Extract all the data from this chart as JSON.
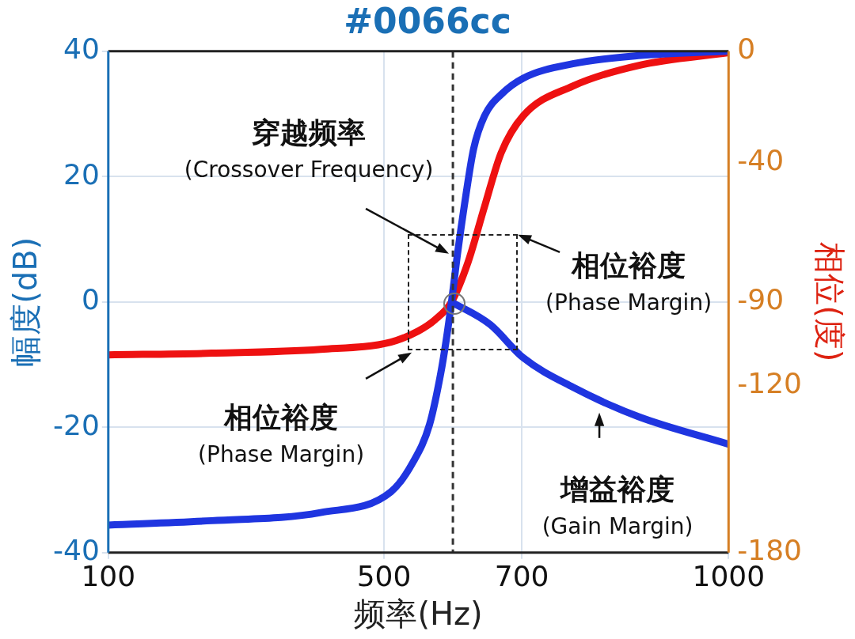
{
  "chart_data": {
    "type": "line",
    "title": "#0066cc",
    "xlabel": "频率(Hz)",
    "ylabel": "幅度(dB)",
    "y2label": "相位(度)",
    "series": [
      {
        "color": "#1f35e0",
        "x": [
          100,
          250,
          408,
          510,
          542,
          566,
          582,
          590,
          598,
          606,
          618,
          630,
          646,
          670,
          702,
          774,
          869,
          1000
        ],
        "values": [
          -35.6,
          -34.9,
          -33.6,
          -30.3,
          -25.6,
          -19.6,
          -11.6,
          -6.3,
          0,
          7.1,
          16.4,
          24.4,
          29.7,
          33.1,
          35.7,
          38,
          39.3,
          40
        ]
      },
      {
        "color": "#1f35e0",
        "x": [
          598,
          654,
          702,
          774,
          869,
          1000
        ],
        "values": [
          0,
          -3.6,
          -8.9,
          -13.6,
          -18.3,
          -22.7
        ]
      },
      {
        "color": "#ee1111",
        "axis": "y2",
        "x": [
          100,
          250,
          408,
          510,
          550,
          574,
          598,
          622,
          646,
          670,
          702,
          774,
          869,
          1000
        ],
        "values": [
          -109,
          -108.4,
          -107,
          -104.4,
          -100.4,
          -96.4,
          -90,
          -75.7,
          -55.7,
          -36.5,
          -23.2,
          -12.5,
          -5.1,
          -0.5
        ]
      }
    ],
    "xlim": [
      100,
      1000
    ],
    "xticks": [
      100,
      500,
      700,
      1000
    ],
    "ylim": [
      -40,
      40
    ],
    "yticks": [
      -40,
      -20,
      0,
      20,
      40
    ],
    "y2lim": [
      -180,
      0
    ],
    "y2ticks": [
      -180,
      -120,
      -90,
      -40,
      0
    ],
    "ref_lines": [
      {
        "axis": "x",
        "value": 600,
        "color": "#333333",
        "line_style": "dashed"
      }
    ],
    "annotations": [
      "穿越频率\n(Crossover Frequency)",
      "相位裕度\n(Phase Margin)",
      "相位裕度\n(Phase Margin)",
      "增益裕度\n(Gain Margin)"
    ],
    "grid": true,
    "legend": false
  }
}
